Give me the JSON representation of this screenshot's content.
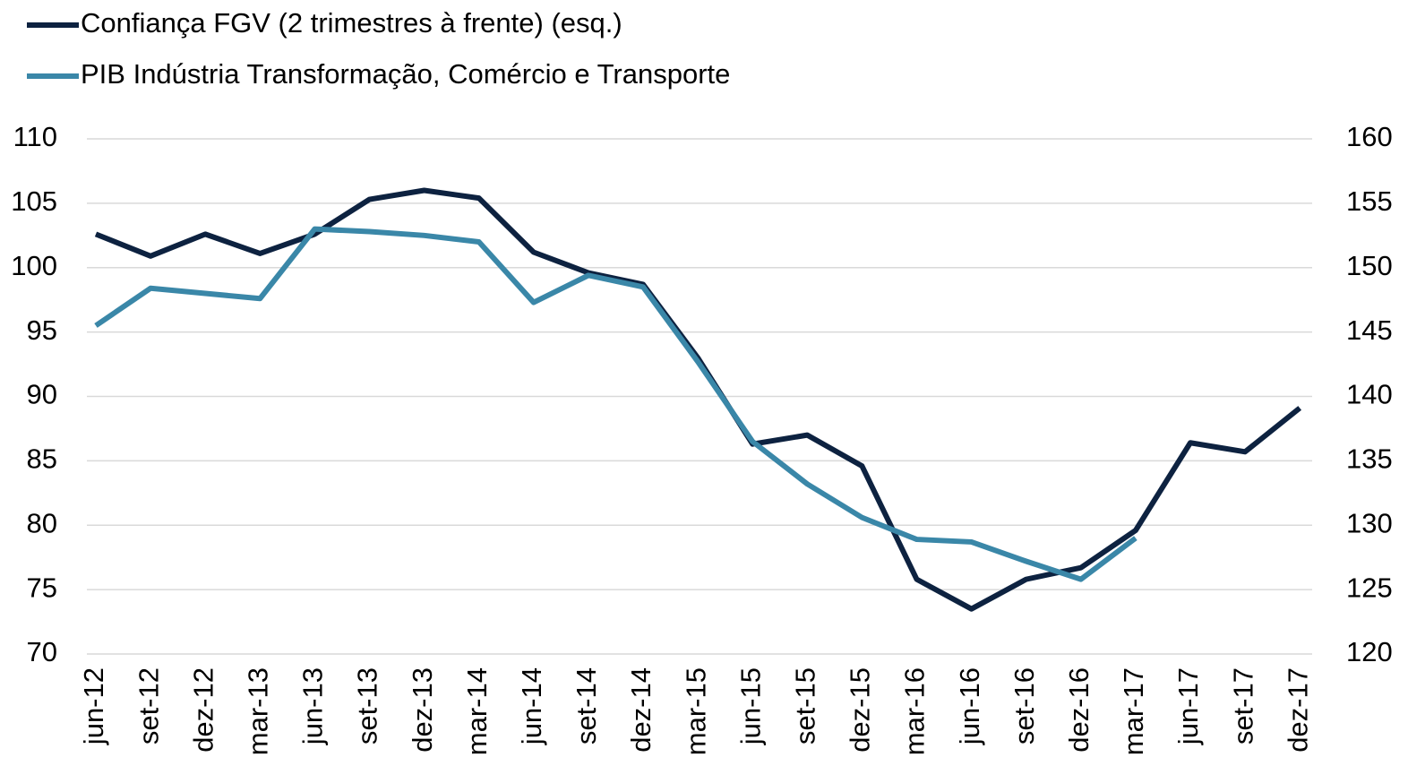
{
  "chart_data": {
    "type": "line",
    "categories": [
      "jun-12",
      "set-12",
      "dez-12",
      "mar-13",
      "jun-13",
      "set-13",
      "dez-13",
      "mar-14",
      "jun-14",
      "set-14",
      "dez-14",
      "mar-15",
      "jun-15",
      "set-15",
      "dez-15",
      "mar-16",
      "jun-16",
      "set-16",
      "dez-16",
      "mar-17",
      "jun-17",
      "set-17",
      "dez-17"
    ],
    "series": [
      {
        "name": "Confiança FGV (2 trimestres à frente) (esq.)",
        "color": "#0d2240",
        "values": [
          102.6,
          100.9,
          102.6,
          101.1,
          102.6,
          105.3,
          106.0,
          105.4,
          101.2,
          99.6,
          98.7,
          93.0,
          86.3,
          87.0,
          84.6,
          75.8,
          73.5,
          75.8,
          76.7,
          79.6,
          86.4,
          85.7,
          89.1
        ]
      },
      {
        "name": "PIB Indústria Transformação, Comércio e Transporte",
        "color": "#3a87a8",
        "axis": "y2",
        "values": [
          145.5,
          148.4,
          148.0,
          147.6,
          153.0,
          152.8,
          152.5,
          152.0,
          147.3,
          149.4,
          148.5,
          142.7,
          136.5,
          133.2,
          130.6,
          128.9,
          128.7,
          127.2,
          125.8,
          129.0,
          null,
          null,
          null
        ]
      }
    ],
    "ylim": [
      70,
      110
    ],
    "yticks": [
      70,
      75,
      80,
      85,
      90,
      95,
      100,
      105,
      110
    ],
    "y2lim": [
      120,
      160
    ],
    "y2ticks": [
      120,
      125,
      130,
      135,
      140,
      145,
      150,
      155,
      160
    ],
    "grid": true
  }
}
